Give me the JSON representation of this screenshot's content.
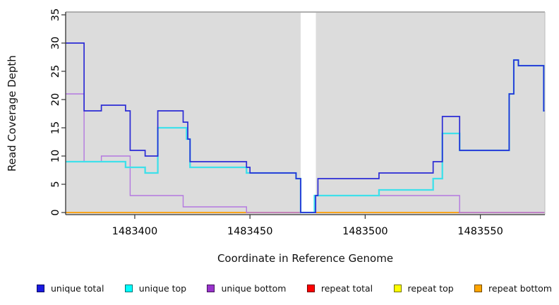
{
  "chart_data": {
    "type": "line",
    "subtype": "step-coverage-plot",
    "title": "",
    "xlabel": "Coordinate in Reference Genome",
    "ylabel": "Read Coverage Depth",
    "xlim": [
      1483370,
      1483578
    ],
    "ylim": [
      0,
      35
    ],
    "x_ticks": [
      "1483400",
      "1483450",
      "1483500",
      "1483550"
    ],
    "x_tick_values": [
      1483400,
      1483450,
      1483500,
      1483550
    ],
    "y_ticks": [
      0,
      5,
      10,
      15,
      20,
      25,
      30,
      35
    ],
    "grid": false,
    "plot_background": "#dcdcdc",
    "gap_band": {
      "from": 1483472,
      "to": 1483478.6,
      "color": "#ffffff"
    },
    "legend_position": "bottom",
    "legend": [
      {
        "label": "unique total",
        "color": "#1a1ae0"
      },
      {
        "label": "unique top",
        "color": "#00ffff"
      },
      {
        "label": "unique bottom",
        "color": "#9933cc"
      },
      {
        "label": "repeat total",
        "color": "#ff0000"
      },
      {
        "label": "repeat top",
        "color": "#ffff00"
      },
      {
        "label": "repeat bottom",
        "color": "#ffa500"
      }
    ],
    "series": [
      {
        "name": "repeat-top",
        "label": "repeat top",
        "color": "#ffff00",
        "width": 1.4,
        "points": [
          [
            1483370,
            0
          ]
        ]
      },
      {
        "name": "repeat-total",
        "label": "repeat total",
        "color": "#d4507a",
        "width": 1.4,
        "points": [
          [
            1483370,
            0
          ]
        ]
      },
      {
        "name": "repeat-bottom",
        "label": "repeat bottom",
        "color": "#ffa500",
        "width": 1.5,
        "points": [
          [
            1483370,
            0
          ]
        ],
        "end": 1483540.5
      },
      {
        "name": "unique-bottom",
        "label": "unique bottom",
        "color": "#b478e0",
        "width": 1.4,
        "points": [
          [
            1483370,
            21
          ],
          [
            1483378,
            9
          ],
          [
            1483385.5,
            10
          ],
          [
            1483398,
            3
          ],
          [
            1483421,
            1
          ],
          [
            1483448.5,
            0
          ],
          [
            1483478.5,
            3
          ],
          [
            1483541,
            0
          ]
        ]
      },
      {
        "name": "unique-top",
        "label": "unique top",
        "color": "#3fe0ea",
        "width": 2.3,
        "points": [
          [
            1483370,
            9
          ],
          [
            1483396,
            8
          ],
          [
            1483404.5,
            7
          ],
          [
            1483410,
            15
          ],
          [
            1483422.5,
            13
          ],
          [
            1483424,
            8
          ],
          [
            1483448.5,
            7
          ],
          [
            1483470,
            6
          ],
          [
            1483472,
            0
          ],
          [
            1483478,
            3
          ],
          [
            1483506,
            4
          ],
          [
            1483529.5,
            6
          ],
          [
            1483533.5,
            14
          ],
          [
            1483541,
            11
          ],
          [
            1483562.5,
            21
          ],
          [
            1483564.5,
            27
          ],
          [
            1483566.5,
            26
          ],
          [
            1483577.5,
            18
          ]
        ]
      },
      {
        "name": "unique-total",
        "label": "unique total",
        "color": "#2b2bd5",
        "width": 1.7,
        "points": [
          [
            1483370,
            30
          ],
          [
            1483378,
            18
          ],
          [
            1483385.5,
            19
          ],
          [
            1483396,
            18
          ],
          [
            1483398,
            11
          ],
          [
            1483404.5,
            10
          ],
          [
            1483410,
            18
          ],
          [
            1483421,
            16
          ],
          [
            1483423,
            13
          ],
          [
            1483424,
            9
          ],
          [
            1483448.5,
            8
          ],
          [
            1483450,
            7
          ],
          [
            1483470,
            6
          ],
          [
            1483472,
            0
          ],
          [
            1483478.5,
            3
          ],
          [
            1483479.5,
            6
          ],
          [
            1483506,
            7
          ],
          [
            1483529.5,
            9
          ],
          [
            1483533.5,
            17
          ],
          [
            1483541,
            11
          ],
          [
            1483562.5,
            21
          ],
          [
            1483564.5,
            27
          ],
          [
            1483566.5,
            26
          ],
          [
            1483577.5,
            18
          ]
        ]
      }
    ]
  }
}
